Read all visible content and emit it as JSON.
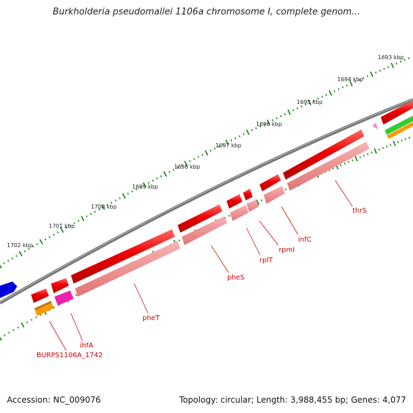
{
  "title": "Burkholderia pseudomallei 1106a chromosome I, complete genom...",
  "footer": {
    "accession": "Accession: NC_009076",
    "topology": "Topology: circular; Length: 3,988,455 bp; Genes: 4,077"
  },
  "scale_labels": [
    "1693 kbp",
    "1694 kbp",
    "1695 kbp",
    "1696 kbp",
    "1697 kbp",
    "1698 kbp",
    "1699 kbp",
    "1700 kbp",
    "1701 kbp",
    "1702 kbp"
  ],
  "gene_labels": [
    "thrS",
    "infC",
    "rpmI",
    "rplT",
    "pheS",
    "pheT",
    "ihfA",
    "BURPS1106A_1742"
  ],
  "colors": {
    "forward_gene": "#ee0000",
    "reverse_gene": "#f08a8a",
    "backbone": "#808080",
    "tick": "#228822",
    "label": "#cc0000",
    "blue_feature": "#0000dd",
    "orange_feature": "#ff9900",
    "magenta_feature": "#ee22aa",
    "green_feature": "#33cc33",
    "pink_feature": "#ff88cc"
  }
}
